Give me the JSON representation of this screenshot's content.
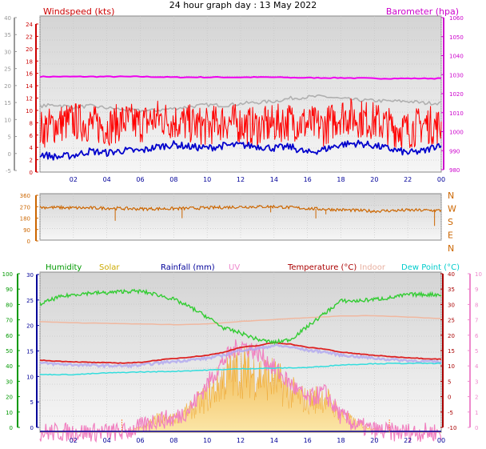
{
  "title": "24 hour graph day : 13 May 2022",
  "x_ticks": [
    "02",
    "04",
    "06",
    "08",
    "10",
    "12",
    "14",
    "16",
    "18",
    "20",
    "22",
    "00"
  ],
  "chart_data": [
    {
      "type": "line",
      "panel": "wind-barometer",
      "legend": {
        "left": {
          "text": "Windspeed (kts)",
          "color": "#cc0000"
        },
        "right": {
          "text": "Barometer (hpa)",
          "color": "#cc00cc"
        }
      },
      "y_left": {
        "range": [
          -5,
          40
        ],
        "ticks": [
          "40",
          "35",
          "30",
          "25",
          "20",
          "15",
          "10",
          "5",
          "0",
          "-5"
        ]
      },
      "y_inner": {
        "range": [
          -1,
          25
        ],
        "ticks": [
          "24",
          "22",
          "20",
          "18",
          "16",
          "14",
          "12",
          "10",
          "8",
          "6",
          "4",
          "2",
          "0"
        ]
      },
      "y_right": {
        "range": [
          978,
          1060
        ],
        "ticks": [
          "1060",
          "1050",
          "1040",
          "1030",
          "1020",
          "1010",
          "1000",
          "990",
          "980"
        ]
      },
      "x_range_hours": [
        0,
        24
      ],
      "series": [
        {
          "color": "#ee00ee",
          "axis": "inner",
          "x": [
            0,
            2,
            4,
            6,
            8,
            10,
            12,
            14,
            16,
            18,
            20,
            22,
            24
          ],
          "values": [
            14.9,
            14.9,
            14.9,
            14.9,
            14.8,
            14.8,
            14.8,
            14.8,
            14.7,
            14.7,
            14.6,
            14.6,
            14.6
          ]
        },
        {
          "color": "#b0b0b0",
          "axis": "inner",
          "x": [
            0,
            1,
            2,
            3,
            4,
            5,
            6,
            7,
            8,
            9,
            10,
            11,
            12,
            13,
            14,
            15,
            16,
            17,
            18,
            19,
            20,
            21,
            22,
            23,
            24
          ],
          "values": [
            10,
            10.2,
            9.8,
            10,
            9.7,
            9.4,
            9.2,
            9.3,
            9.6,
            9.9,
            10.2,
            10.1,
            10.4,
            10.6,
            10.8,
            11.3,
            11.5,
            11.6,
            11.2,
            11,
            10.9,
            10.8,
            10.8,
            10.5,
            10.5
          ]
        },
        {
          "color": "#ff0000",
          "axis": "inner",
          "x": [
            0,
            1,
            2,
            3,
            4,
            5,
            6,
            7,
            8,
            9,
            10,
            11,
            12,
            13,
            14,
            15,
            16,
            17,
            18,
            19,
            20,
            21,
            22,
            23,
            24
          ],
          "values": [
            6,
            7,
            7.5,
            7,
            6.5,
            7.5,
            7,
            8,
            7.5,
            7,
            6.5,
            7.5,
            7,
            6.5,
            7,
            7.5,
            7,
            6.5,
            8.5,
            8,
            7.5,
            6.5,
            6,
            7,
            6.5
          ]
        },
        {
          "color": "#0000cc",
          "axis": "inner",
          "x": [
            0,
            1,
            2,
            3,
            4,
            5,
            6,
            7,
            8,
            9,
            10,
            11,
            12,
            13,
            14,
            15,
            16,
            17,
            18,
            19,
            20,
            21,
            22,
            23,
            24
          ],
          "values": [
            2,
            1.5,
            1.8,
            2.5,
            2.2,
            2.6,
            2.5,
            3.2,
            3.6,
            3.2,
            3,
            3.4,
            3.5,
            3.3,
            3,
            3.2,
            2.2,
            2.8,
            3.6,
            3.8,
            3.4,
            2.8,
            2.2,
            2.5,
            3.8
          ]
        }
      ]
    },
    {
      "type": "line",
      "panel": "wind-direction",
      "y_left": {
        "range": [
          0,
          360
        ],
        "ticks": [
          "360",
          "270",
          "180",
          "90",
          "0"
        ]
      },
      "y_right": {
        "ticks": [
          "N",
          "W",
          "S",
          "E",
          "N"
        ]
      },
      "x_range_hours": [
        0,
        24
      ],
      "series": [
        {
          "color": "#cc6600",
          "x": [
            0,
            2,
            4,
            6,
            8,
            10,
            12,
            14,
            16,
            18,
            20,
            22,
            24
          ],
          "values": [
            255,
            250,
            248,
            242,
            244,
            250,
            258,
            260,
            245,
            235,
            225,
            232,
            230
          ]
        }
      ]
    },
    {
      "type": "area",
      "panel": "temperature-humidity-solar",
      "legend": [
        {
          "text": "Humidity",
          "color": "#009900"
        },
        {
          "text": "Solar",
          "color": "#ccaa00"
        },
        {
          "text": "Rainfall (mm)",
          "color": "#000099"
        },
        {
          "text": "UV",
          "color": "#ee88cc"
        },
        {
          "text": "Temperature (°C)",
          "color": "#aa0000"
        },
        {
          "text": "Indoor",
          "color": "#e8b0a0"
        },
        {
          "text": "Dew Point (°C)",
          "color": "#00cccc"
        }
      ],
      "y_humidity": {
        "range": [
          0,
          100
        ],
        "ticks": [
          "100",
          "90",
          "80",
          "70",
          "60",
          "50",
          "40",
          "30",
          "20",
          "10",
          "0"
        ]
      },
      "y_inner": {
        "range": [
          0,
          30
        ],
        "ticks": [
          "30",
          "25",
          "20",
          "15",
          "10",
          "5",
          "0"
        ]
      },
      "y_temp": {
        "range": [
          -10,
          40
        ],
        "ticks": [
          "40",
          "35",
          "30",
          "25",
          "20",
          "15",
          "10",
          "5",
          "0",
          "-5",
          "-10"
        ]
      },
      "y_uv": {
        "range": [
          0,
          10
        ],
        "ticks": [
          "10",
          "9",
          "8",
          "7",
          "6",
          "5",
          "4",
          "3",
          "2",
          "1",
          "0"
        ]
      },
      "x_range_hours": [
        0,
        24
      ],
      "series": [
        {
          "name": "Humidity",
          "color": "#33cc33",
          "axis": "humidity",
          "x": [
            0,
            1,
            2,
            3,
            4,
            5,
            6,
            7,
            8,
            9,
            10,
            11,
            12,
            13,
            14,
            15,
            16,
            17,
            18,
            19,
            20,
            21,
            22,
            23,
            24
          ],
          "values": [
            80,
            84,
            86,
            87,
            87,
            88,
            88,
            86,
            83,
            78,
            72,
            65,
            62,
            58,
            56,
            58,
            66,
            74,
            82,
            82,
            83,
            84,
            86,
            86,
            86
          ]
        },
        {
          "name": "Indoor",
          "color": "#f0b8a0",
          "axis": "temp",
          "x": [
            0,
            2,
            4,
            6,
            8,
            10,
            12,
            14,
            16,
            18,
            20,
            22,
            24
          ],
          "values": [
            24.5,
            24.2,
            24,
            23.8,
            23.6,
            23.8,
            24.6,
            25.2,
            25.8,
            26.3,
            26.4,
            26,
            25.5
          ]
        },
        {
          "name": "Temperature (°C)",
          "color": "#dd2222",
          "axis": "temp",
          "x": [
            0,
            1,
            2,
            3,
            4,
            5,
            6,
            7,
            8,
            9,
            10,
            11,
            12,
            13,
            14,
            15,
            16,
            17,
            18,
            19,
            20,
            21,
            22,
            23,
            24
          ],
          "values": [
            12.5,
            12.2,
            12,
            11.8,
            11.7,
            11.6,
            11.8,
            12.5,
            13,
            13.5,
            14,
            15,
            16.5,
            17,
            18,
            17.5,
            16.5,
            16,
            15,
            14.5,
            14,
            13.6,
            13.3,
            13,
            12.8
          ]
        },
        {
          "name": "Dew Point (°C)",
          "color": "#33dddd",
          "axis": "temp",
          "x": [
            0,
            2,
            4,
            6,
            8,
            10,
            12,
            14,
            16,
            18,
            20,
            22,
            24
          ],
          "values": [
            8,
            8,
            8.5,
            8.8,
            9,
            9.4,
            9.8,
            10,
            10.2,
            11,
            11.4,
            11.5,
            11.5
          ]
        },
        {
          "name": "Solar",
          "color": "#f5c060",
          "axis": "inner",
          "x": [
            0,
            5,
            6,
            7,
            8,
            9,
            10,
            11,
            12,
            13,
            14,
            15,
            16,
            17,
            18,
            19,
            20,
            21,
            22,
            24
          ],
          "values": [
            0,
            0,
            1,
            3,
            3,
            5,
            8,
            12,
            14,
            13,
            12,
            9,
            7,
            8,
            4,
            2,
            0.7,
            0,
            0,
            0
          ]
        },
        {
          "name": "UV",
          "color": "#f080c0",
          "axis": "uv",
          "x": [
            0,
            5,
            6,
            7,
            8,
            9,
            10,
            11,
            12,
            13,
            14,
            15,
            16,
            17,
            18,
            19,
            20,
            21,
            24
          ],
          "values": [
            0,
            0,
            0.3,
            0.8,
            0.8,
            1.5,
            3,
            4.5,
            5.5,
            5,
            4,
            3,
            2,
            2.5,
            1,
            0.4,
            0.1,
            0,
            0
          ]
        }
      ]
    }
  ]
}
